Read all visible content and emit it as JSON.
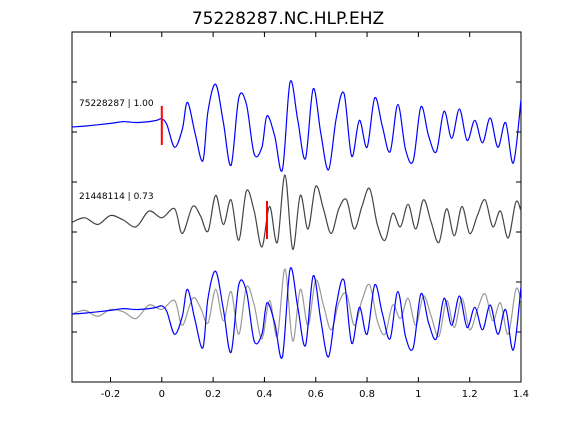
{
  "chart_data": {
    "type": "line",
    "title": "75228287.NC.HLP.EHZ",
    "xlabel": "",
    "ylabel": "",
    "xlim": [
      -0.35,
      1.4
    ],
    "x_ticks": [
      -0.2,
      0,
      0.2,
      0.4,
      0.6,
      0.8,
      1,
      1.2,
      1.4
    ],
    "x_tick_labels": [
      "-0.2",
      "0",
      "0.2",
      "0.4",
      "0.6",
      "0.8",
      "1",
      "1.2",
      "1.4"
    ],
    "y_tick_count": 6,
    "grid": false,
    "panels": [
      {
        "label": "75228287 | 1.00",
        "color": "#0000ff",
        "pick_time": 0.0,
        "pick_color": "#ff0000",
        "x": [
          -0.35,
          -0.3,
          -0.25,
          -0.2,
          -0.15,
          -0.1,
          -0.05,
          -0.02,
          0.0,
          0.02,
          0.05,
          0.08,
          0.1,
          0.13,
          0.16,
          0.18,
          0.21,
          0.24,
          0.27,
          0.3,
          0.33,
          0.36,
          0.39,
          0.41,
          0.44,
          0.47,
          0.5,
          0.53,
          0.56,
          0.59,
          0.62,
          0.65,
          0.68,
          0.71,
          0.74,
          0.77,
          0.8,
          0.83,
          0.86,
          0.89,
          0.92,
          0.95,
          0.98,
          1.01,
          1.04,
          1.07,
          1.1,
          1.13,
          1.16,
          1.19,
          1.22,
          1.25,
          1.28,
          1.31,
          1.34,
          1.37,
          1.4
        ],
        "y": [
          0.0,
          0.02,
          0.05,
          0.08,
          0.12,
          0.1,
          0.12,
          0.15,
          0.18,
          0.05,
          -0.45,
          -0.05,
          0.55,
          -0.15,
          -0.75,
          0.35,
          0.95,
          0.1,
          -0.85,
          0.65,
          0.5,
          -0.6,
          -0.45,
          0.25,
          -0.2,
          -0.95,
          1.0,
          0.15,
          -0.7,
          0.85,
          -0.15,
          -0.95,
          0.2,
          0.75,
          -0.65,
          0.15,
          -0.45,
          0.65,
          0.0,
          -0.55,
          0.5,
          -0.5,
          -0.75,
          0.45,
          -0.2,
          -0.55,
          0.35,
          -0.25,
          0.4,
          -0.3,
          0.15,
          -0.35,
          0.2,
          -0.45,
          0.1,
          -0.8,
          0.6
        ]
      },
      {
        "label": "21448114 | 0.73",
        "color": "#444444",
        "pick_time": 0.41,
        "pick_color": "#ff0000",
        "x": [
          -0.35,
          -0.3,
          -0.25,
          -0.2,
          -0.15,
          -0.1,
          -0.05,
          0.0,
          0.05,
          0.08,
          0.12,
          0.15,
          0.18,
          0.21,
          0.24,
          0.27,
          0.3,
          0.33,
          0.36,
          0.39,
          0.42,
          0.45,
          0.48,
          0.51,
          0.54,
          0.57,
          0.6,
          0.63,
          0.66,
          0.69,
          0.72,
          0.75,
          0.78,
          0.81,
          0.84,
          0.87,
          0.9,
          0.93,
          0.96,
          0.99,
          1.02,
          1.05,
          1.08,
          1.11,
          1.14,
          1.17,
          1.2,
          1.23,
          1.26,
          1.29,
          1.32,
          1.35,
          1.38,
          1.4
        ],
        "y": [
          -0.05,
          0.05,
          -0.1,
          0.1,
          0.0,
          -0.15,
          0.2,
          0.05,
          0.25,
          -0.3,
          0.3,
          0.1,
          -0.25,
          0.55,
          -0.1,
          0.45,
          -0.45,
          0.65,
          0.2,
          -0.6,
          0.3,
          -0.5,
          1.0,
          -0.65,
          0.55,
          -0.2,
          0.75,
          0.25,
          -0.3,
          0.25,
          0.45,
          -0.2,
          0.3,
          0.7,
          -0.1,
          -0.45,
          0.15,
          -0.15,
          0.35,
          -0.2,
          0.45,
          -0.05,
          -0.5,
          0.25,
          -0.35,
          0.3,
          -0.3,
          0.1,
          0.45,
          -0.15,
          0.2,
          -0.4,
          0.4,
          0.2
        ]
      },
      {
        "label": "",
        "overlay": [
          {
            "color": "#999999",
            "x": [
              -0.35,
              -0.3,
              -0.25,
              -0.2,
              -0.15,
              -0.1,
              -0.05,
              0.0,
              0.05,
              0.08,
              0.12,
              0.15,
              0.18,
              0.21,
              0.24,
              0.27,
              0.3,
              0.33,
              0.36,
              0.39,
              0.42,
              0.45,
              0.48,
              0.51,
              0.54,
              0.57,
              0.6,
              0.63,
              0.66,
              0.69,
              0.72,
              0.75,
              0.78,
              0.81,
              0.84,
              0.87,
              0.9,
              0.93,
              0.96,
              0.99,
              1.02,
              1.05,
              1.08,
              1.11,
              1.14,
              1.17,
              1.2,
              1.23,
              1.26,
              1.29,
              1.32,
              1.35,
              1.38,
              1.4
            ],
            "y": [
              0.0,
              0.08,
              -0.05,
              0.1,
              0.05,
              -0.1,
              0.2,
              0.1,
              0.3,
              -0.25,
              0.35,
              0.15,
              -0.2,
              0.55,
              -0.15,
              0.5,
              -0.45,
              0.6,
              0.2,
              -0.55,
              0.3,
              -0.5,
              1.0,
              -0.6,
              0.55,
              -0.25,
              0.75,
              0.2,
              -0.35,
              0.25,
              0.45,
              -0.25,
              0.3,
              0.65,
              -0.15,
              -0.45,
              0.2,
              -0.1,
              0.35,
              -0.25,
              0.4,
              -0.05,
              -0.5,
              0.3,
              -0.3,
              0.35,
              -0.35,
              0.1,
              0.45,
              -0.15,
              0.25,
              -0.45,
              0.55,
              0.3
            ]
          },
          {
            "color": "#0000ff",
            "x": [
              -0.35,
              -0.3,
              -0.25,
              -0.2,
              -0.15,
              -0.1,
              -0.05,
              -0.02,
              0.0,
              0.02,
              0.05,
              0.08,
              0.1,
              0.13,
              0.16,
              0.18,
              0.21,
              0.24,
              0.27,
              0.3,
              0.33,
              0.36,
              0.39,
              0.41,
              0.44,
              0.47,
              0.5,
              0.53,
              0.56,
              0.59,
              0.62,
              0.65,
              0.68,
              0.71,
              0.74,
              0.77,
              0.8,
              0.83,
              0.86,
              0.89,
              0.92,
              0.95,
              0.98,
              1.01,
              1.04,
              1.07,
              1.1,
              1.13,
              1.16,
              1.19,
              1.22,
              1.25,
              1.28,
              1.31,
              1.34,
              1.37,
              1.4
            ],
            "y": [
              0.0,
              0.02,
              0.05,
              0.08,
              0.12,
              0.1,
              0.12,
              0.15,
              0.18,
              0.05,
              -0.45,
              -0.05,
              0.55,
              -0.15,
              -0.75,
              0.35,
              0.95,
              0.1,
              -0.85,
              0.65,
              0.5,
              -0.6,
              -0.45,
              0.25,
              -0.2,
              -0.95,
              1.0,
              0.15,
              -0.7,
              0.85,
              -0.15,
              -0.95,
              0.2,
              0.75,
              -0.65,
              0.15,
              -0.45,
              0.65,
              0.0,
              -0.55,
              0.5,
              -0.5,
              -0.75,
              0.45,
              -0.2,
              -0.55,
              0.35,
              -0.25,
              0.4,
              -0.3,
              0.15,
              -0.35,
              0.2,
              -0.45,
              0.1,
              -0.8,
              0.6
            ]
          }
        ]
      }
    ]
  }
}
